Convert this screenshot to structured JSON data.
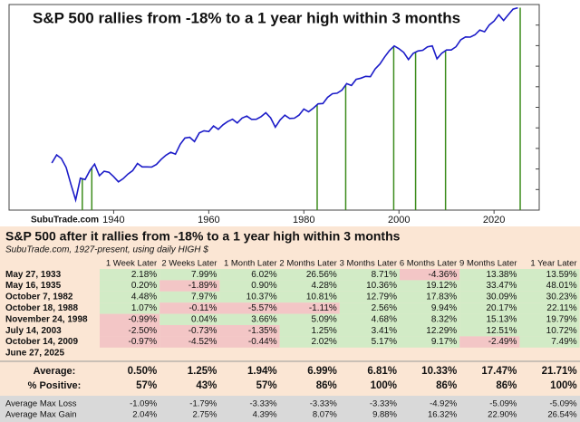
{
  "chart_data": {
    "type": "line",
    "title": "S&P 500 rallies from -18% to a 1 year high within 3 months",
    "watermark": "SubuTrade.com",
    "x": [
      1927,
      1928,
      1929,
      1930,
      1931,
      1932,
      1933,
      1934,
      1935,
      1936,
      1937,
      1938,
      1939,
      1940,
      1941,
      1942,
      1943,
      1944,
      1945,
      1946,
      1947,
      1948,
      1949,
      1950,
      1951,
      1952,
      1953,
      1954,
      1955,
      1956,
      1957,
      1958,
      1959,
      1960,
      1961,
      1962,
      1963,
      1964,
      1965,
      1966,
      1967,
      1968,
      1969,
      1970,
      1971,
      1972,
      1973,
      1974,
      1975,
      1976,
      1977,
      1978,
      1979,
      1980,
      1981,
      1982,
      1983,
      1984,
      1985,
      1986,
      1987,
      1988,
      1989,
      1990,
      1991,
      1992,
      1993,
      1994,
      1995,
      1996,
      1997,
      1998,
      1999,
      2000,
      2001,
      2002,
      2003,
      2004,
      2005,
      2006,
      2007,
      2008,
      2009,
      2010,
      2011,
      2012,
      2013,
      2014,
      2015,
      2016,
      2017,
      2018,
      2019,
      2020,
      2021,
      2022,
      2023,
      2024,
      2025
    ],
    "values": [
      17.7,
      24,
      21,
      15,
      8,
      4.4,
      10,
      9.5,
      13.4,
      17,
      11,
      13,
      12.5,
      10.6,
      8.7,
      9.8,
      11.7,
      13.3,
      17.4,
      15.3,
      15.3,
      15.2,
      16.8,
      20.4,
      23.8,
      26.6,
      24.8,
      36,
      45.5,
      46.7,
      39.9,
      55.2,
      59.9,
      58.1,
      71.6,
      63.1,
      75,
      84.8,
      92.4,
      80.3,
      96.5,
      103.9,
      92.1,
      92.2,
      102,
      118,
      97.6,
      68.6,
      90.2,
      107.5,
      95.1,
      96.1,
      107.9,
      135.8,
      122.6,
      140.6,
      164.9,
      167.2,
      211.3,
      242.2,
      247.1,
      277.7,
      353.4,
      330.2,
      417.1,
      435.7,
      466.5,
      459.3,
      615.9,
      740.7,
      970.4,
      1229,
      1469,
      1320,
      1148,
      880,
      1112,
      1212,
      1248,
      1418,
      1468,
      903,
      1115,
      1258,
      1258,
      1426,
      1848,
      2059,
      2044,
      2239,
      2674,
      2507,
      3231,
      3756,
      4766,
      3840,
      4770,
      5882,
      6200
    ],
    "color": "#1c1cc8",
    "log_scale": true,
    "xlim": [
      1918,
      2029.5
    ],
    "ylim": [
      3,
      7000
    ],
    "xticks": [
      1940,
      1960,
      1980,
      2000,
      2020
    ],
    "signals": {
      "color": "#3c8c1c",
      "x": [
        1933.4,
        1935.4,
        1982.8,
        1988.8,
        1998.9,
        2003.5,
        2009.8,
        2025.5
      ]
    }
  },
  "table": {
    "title": "S&P 500 after it rallies from -18% to a 1 year high within 3 months",
    "subtitle": "SubuTrade.com, 1927-present, using daily HIGH $",
    "columns": [
      "1 Week Later",
      "2 Weeks Later",
      "1 Month Later",
      "2 Months Later",
      "3 Months Later",
      "6 Months Later",
      "9 Months Later",
      "1 Year Later"
    ],
    "rows": [
      {
        "date": "May 27, 1933",
        "cells": [
          "2.18%",
          "7.99%",
          "6.02%",
          "26.56%",
          "8.71%",
          "-4.36%",
          "13.38%",
          "13.59%"
        ]
      },
      {
        "date": "May 16, 1935",
        "cells": [
          "0.20%",
          "-1.89%",
          "0.90%",
          "4.28%",
          "10.36%",
          "19.12%",
          "33.47%",
          "48.01%"
        ]
      },
      {
        "date": "October 7, 1982",
        "cells": [
          "4.48%",
          "7.97%",
          "10.37%",
          "10.81%",
          "12.79%",
          "17.83%",
          "30.09%",
          "30.23%"
        ]
      },
      {
        "date": "October 18, 1988",
        "cells": [
          "1.07%",
          "-0.11%",
          "-5.57%",
          "-1.11%",
          "2.56%",
          "9.94%",
          "20.17%",
          "22.11%"
        ]
      },
      {
        "date": "November 24, 1998",
        "cells": [
          "-0.99%",
          "0.04%",
          "3.66%",
          "5.09%",
          "4.68%",
          "8.32%",
          "15.13%",
          "19.79%"
        ]
      },
      {
        "date": "July 14, 2003",
        "cells": [
          "-2.50%",
          "-0.73%",
          "-1.35%",
          "1.25%",
          "3.41%",
          "12.29%",
          "12.51%",
          "10.72%"
        ]
      },
      {
        "date": "October 14, 2009",
        "cells": [
          "-0.97%",
          "-4.52%",
          "-0.44%",
          "2.02%",
          "5.17%",
          "9.17%",
          "-2.49%",
          "7.49%"
        ]
      },
      {
        "date": "June 27, 2025",
        "cells": []
      }
    ],
    "summary": [
      {
        "label": "Average:",
        "cells": [
          "0.50%",
          "1.25%",
          "1.94%",
          "6.99%",
          "6.81%",
          "10.33%",
          "17.47%",
          "21.71%"
        ]
      },
      {
        "label": "% Positive:",
        "cells": [
          "57%",
          "43%",
          "57%",
          "86%",
          "100%",
          "86%",
          "86%",
          "100%"
        ]
      }
    ],
    "stats": [
      {
        "label": "Average Max Loss",
        "cells": [
          "-1.09%",
          "-1.79%",
          "-3.33%",
          "-3.33%",
          "-3.33%",
          "-4.92%",
          "-5.09%",
          "-5.09%"
        ]
      },
      {
        "label": "Average Max Gain",
        "cells": [
          "2.04%",
          "2.75%",
          "4.39%",
          "8.07%",
          "9.88%",
          "16.32%",
          "22.90%",
          "26.54%"
        ]
      }
    ]
  }
}
